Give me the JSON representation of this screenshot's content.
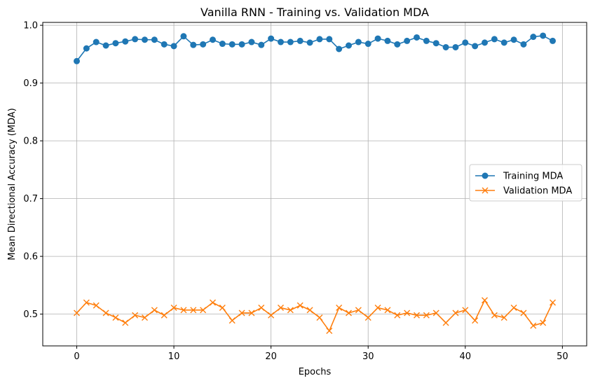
{
  "chart_data": {
    "type": "line",
    "title": "Vanilla RNN - Training vs. Validation MDA",
    "xlabel": "Epochs",
    "ylabel": "Mean Directional Accuracy (MDA)",
    "xlim": [
      -3.5,
      52.5
    ],
    "ylim": [
      0.445,
      1.005
    ],
    "xticks": [
      0,
      10,
      20,
      30,
      40,
      50
    ],
    "yticks": [
      0.5,
      0.6,
      0.7,
      0.8,
      0.9,
      1.0
    ],
    "xtick_labels": [
      "0",
      "10",
      "20",
      "30",
      "40",
      "50"
    ],
    "ytick_labels": [
      "0.5",
      "0.6",
      "0.7",
      "0.8",
      "0.9",
      "1.0"
    ],
    "grid": true,
    "legend_position": "center-right",
    "x": [
      0,
      1,
      2,
      3,
      4,
      5,
      6,
      7,
      8,
      9,
      10,
      11,
      12,
      13,
      14,
      15,
      16,
      17,
      18,
      19,
      20,
      21,
      22,
      23,
      24,
      25,
      26,
      27,
      28,
      29,
      30,
      31,
      32,
      33,
      34,
      35,
      36,
      37,
      38,
      39,
      40,
      41,
      42,
      43,
      44,
      45,
      46,
      47,
      48,
      49
    ],
    "series": [
      {
        "name": "Training MDA",
        "color": "#1f77b4",
        "marker": "circle",
        "values": [
          0.938,
          0.96,
          0.971,
          0.965,
          0.969,
          0.972,
          0.976,
          0.975,
          0.975,
          0.967,
          0.964,
          0.981,
          0.966,
          0.967,
          0.975,
          0.968,
          0.967,
          0.967,
          0.971,
          0.966,
          0.977,
          0.971,
          0.971,
          0.973,
          0.97,
          0.976,
          0.976,
          0.959,
          0.965,
          0.971,
          0.968,
          0.977,
          0.973,
          0.967,
          0.973,
          0.979,
          0.973,
          0.969,
          0.962,
          0.962,
          0.97,
          0.964,
          0.97,
          0.976,
          0.97,
          0.975,
          0.967,
          0.98,
          0.982,
          0.973
        ]
      },
      {
        "name": "Validation MDA",
        "color": "#ff7f0e",
        "marker": "x",
        "values": [
          0.502,
          0.52,
          0.515,
          0.502,
          0.494,
          0.485,
          0.498,
          0.494,
          0.507,
          0.498,
          0.511,
          0.507,
          0.507,
          0.507,
          0.52,
          0.511,
          0.489,
          0.502,
          0.502,
          0.511,
          0.498,
          0.511,
          0.507,
          0.515,
          0.507,
          0.494,
          0.471,
          0.511,
          0.502,
          0.507,
          0.494,
          0.511,
          0.507,
          0.498,
          0.502,
          0.498,
          0.498,
          0.502,
          0.485,
          0.502,
          0.507,
          0.489,
          0.524,
          0.498,
          0.494,
          0.511,
          0.502,
          0.48,
          0.485,
          0.52
        ]
      }
    ]
  }
}
